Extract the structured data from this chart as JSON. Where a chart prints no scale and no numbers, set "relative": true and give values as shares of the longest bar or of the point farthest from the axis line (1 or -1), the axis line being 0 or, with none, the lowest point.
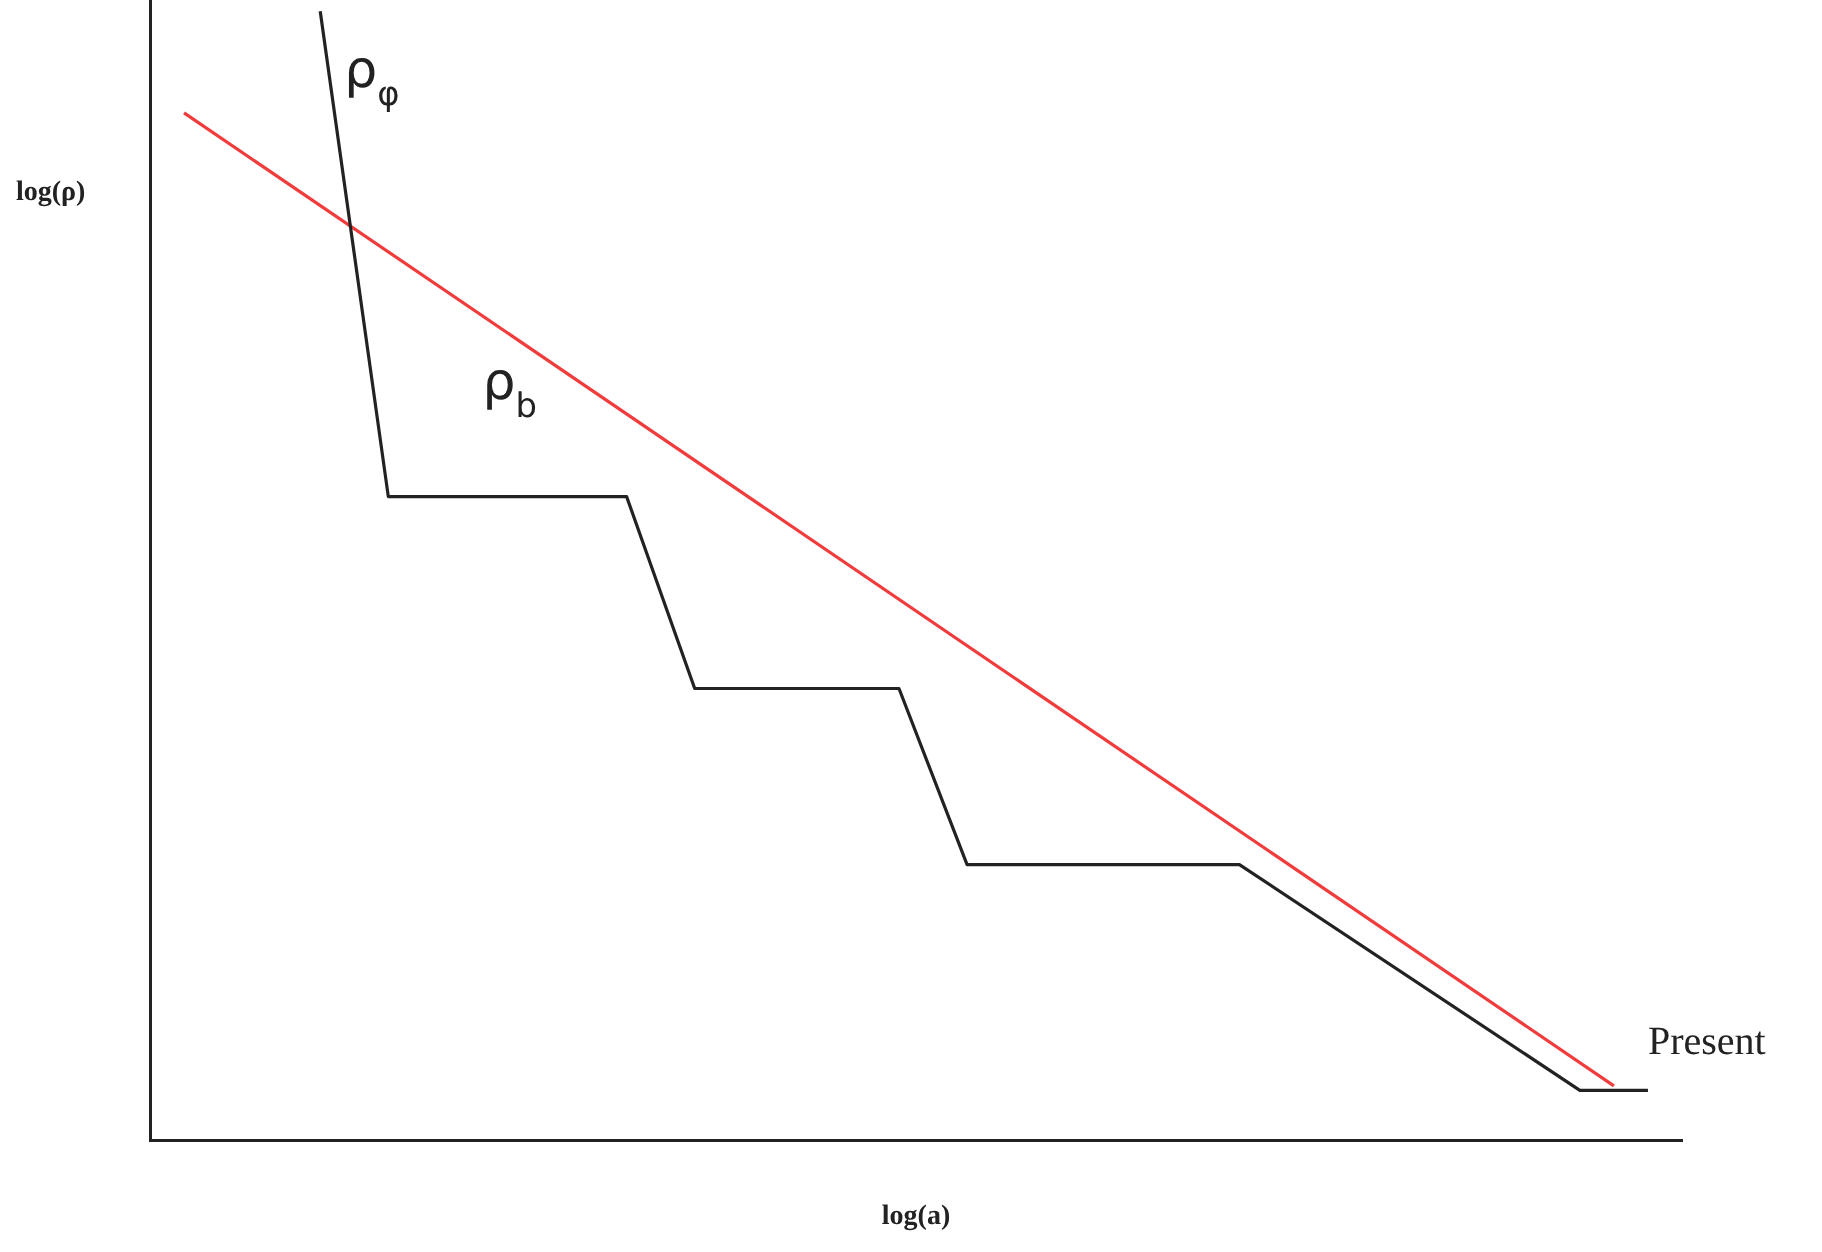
{
  "chart_data": {
    "type": "line",
    "relative": true,
    "xlabel": "log(a)",
    "ylabel": "log(ρ)",
    "tick_labels": false,
    "legend": false,
    "grid": false,
    "marker": "none",
    "categories": [
      null,
      null,
      null,
      null,
      null,
      null,
      null,
      null,
      null,
      null,
      null,
      null,
      null,
      null,
      null,
      null,
      null,
      null,
      null,
      null,
      null,
      null,
      null,
      null,
      null,
      null,
      null,
      null,
      null,
      null,
      null,
      null,
      null,
      null,
      null,
      null,
      null,
      null,
      null,
      null,
      null,
      null,
      null,
      null,
      null,
      null
    ],
    "series": [
      {
        "name": "ρ$_{φ}$",
        "color": "#222222",
        "values": [
          null,
          null,
          null,
          null,
          null,
          1,
          null,
          0.57,
          null,
          null,
          null,
          null,
          null,
          null,
          0.57,
          null,
          0.4,
          null,
          null,
          null,
          null,
          null,
          0.4,
          null,
          0.244,
          null,
          null,
          null,
          null,
          null,
          null,
          null,
          0.244,
          null,
          null,
          null,
          null,
          null,
          null,
          null,
          null,
          null,
          0.044,
          null,
          0.044,
          null
        ]
      },
      {
        "name": "ρ$_{b}$",
        "color": "#f03c3c",
        "values": [
          null,
          0.91,
          null,
          null,
          null,
          null,
          null,
          null,
          null,
          null,
          null,
          null,
          null,
          null,
          null,
          null,
          null,
          null,
          null,
          null,
          null,
          null,
          null,
          null,
          null,
          null,
          null,
          null,
          null,
          null,
          null,
          null,
          null,
          null,
          null,
          null,
          null,
          null,
          null,
          null,
          null,
          null,
          null,
          0.048,
          null,
          null
        ]
      }
    ],
    "annotations": [
      "Present"
    ]
  }
}
